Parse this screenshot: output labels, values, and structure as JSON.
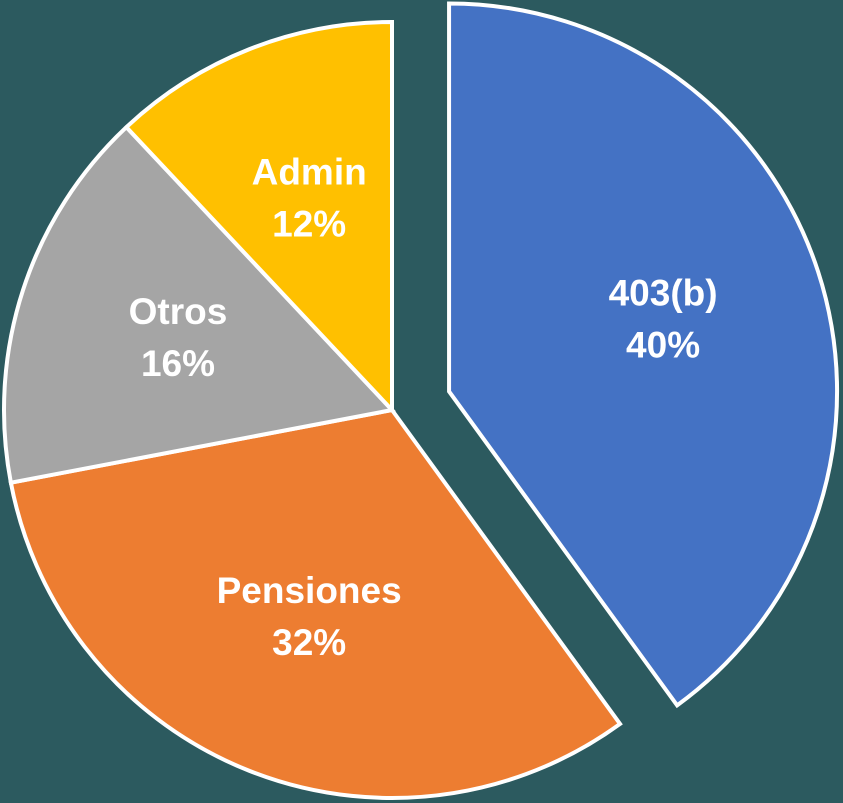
{
  "chart_data": {
    "type": "pie",
    "categories": [
      "403(b)",
      "Pensiones",
      "Otros",
      "Admin"
    ],
    "values": [
      40,
      32,
      16,
      12
    ],
    "value_labels": [
      "40%",
      "32%",
      "16%",
      "12%"
    ],
    "colors": [
      "#4472c4",
      "#ed7d31",
      "#a5a5a5",
      "#ffc000"
    ],
    "exploded": [
      "403(b)"
    ]
  }
}
